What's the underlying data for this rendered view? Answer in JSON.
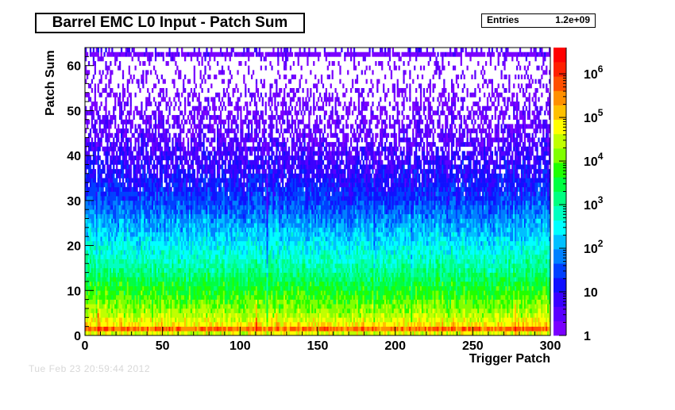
{
  "chart_data": {
    "type": "heatmap",
    "title": "Barrel EMC L0 Input - Patch Sum",
    "xlabel": "Trigger Patch",
    "ylabel": "Patch Sum",
    "xlim": [
      0,
      300
    ],
    "ylim": [
      0,
      64
    ],
    "x_ticks": [
      "0",
      "50",
      "100",
      "150",
      "200",
      "250",
      "300"
    ],
    "y_ticks": [
      "0",
      "10",
      "20",
      "30",
      "40",
      "50",
      "60"
    ],
    "z_scale": "log",
    "z_range": [
      1,
      4000000
    ],
    "colorbar_ticks": [
      "1",
      "10",
      "10^2",
      "10^3",
      "10^4",
      "10^5",
      "10^6"
    ],
    "stats": {
      "label": "Entries",
      "value": "1.2e+09"
    },
    "bins": {
      "x": 300,
      "y": 64
    },
    "band_profile": [
      {
        "patch_sum": 0,
        "counts": 1000
      },
      {
        "patch_sum": 1,
        "counts": 2000000
      },
      {
        "patch_sum": 2,
        "counts": 100000
      },
      {
        "patch_sum": 5,
        "counts": 20000
      },
      {
        "patch_sum": 10,
        "counts": 5000
      },
      {
        "patch_sum": 15,
        "counts": 1000
      },
      {
        "patch_sum": 20,
        "counts": 300
      },
      {
        "patch_sum": 25,
        "counts": 100
      },
      {
        "patch_sum": 30,
        "counts": 30
      },
      {
        "patch_sum": 35,
        "counts": 12
      },
      {
        "patch_sum": 40,
        "counts": 6
      },
      {
        "patch_sum": 45,
        "counts": 3
      },
      {
        "patch_sum": 50,
        "counts": 2
      },
      {
        "patch_sum": 55,
        "counts": 1.3
      },
      {
        "patch_sum": 60,
        "counts": 1
      },
      {
        "patch_sum": 63,
        "counts": 4
      }
    ],
    "hot_patches": [
      8,
      110,
      277
    ],
    "low_patches": [
      117,
      186,
      210
    ],
    "palette": [
      "#7a00ff",
      "#5a00ff",
      "#3a00ff",
      "#1010ff",
      "#0040ff",
      "#0080ff",
      "#00c0ff",
      "#00ffff",
      "#00ffc0",
      "#00ff80",
      "#00ff40",
      "#20ff00",
      "#80ff00",
      "#c0ff00",
      "#ffff00",
      "#ffc000",
      "#ff9000",
      "#ff5000",
      "#ff2000",
      "#ff0000"
    ]
  },
  "footer_faint_text": "Tue Feb 23 20:59:44 2012"
}
